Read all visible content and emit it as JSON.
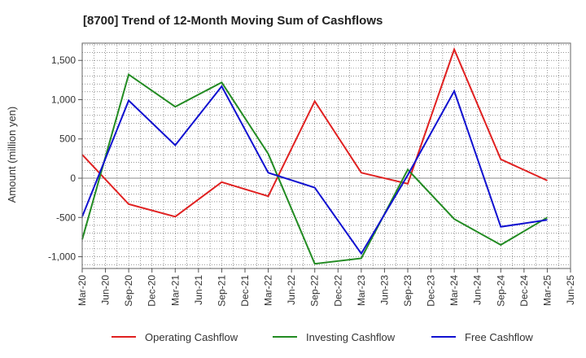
{
  "chart_data": {
    "type": "line",
    "title": "[8700]  Trend of 12-Month Moving Sum of Cashflows",
    "xlabel": "",
    "ylabel": "Amount (million yen)",
    "ylim": [
      -1150,
      1720
    ],
    "yticks": [
      -1000,
      -500,
      0,
      500,
      1000,
      1500
    ],
    "ytick_labels": [
      "-1,000",
      "-500",
      "0",
      "500",
      "1,000",
      "1,500"
    ],
    "x_tick_labels": [
      "Mar-20",
      "Jun-20",
      "Sep-20",
      "Dec-20",
      "Mar-21",
      "Jun-21",
      "Sep-21",
      "Dec-21",
      "Mar-22",
      "Jun-22",
      "Sep-22",
      "Dec-22",
      "Mar-23",
      "Jun-23",
      "Sep-23",
      "Dec-23",
      "Mar-24",
      "Jun-24",
      "Sep-24",
      "Dec-24",
      "Mar-25",
      "Jun-25"
    ],
    "grid": true,
    "legend_position": "bottom",
    "series": [
      {
        "name": "Operating Cashflow",
        "color": "#e02020",
        "x": [
          "Mar-20",
          "Sep-20",
          "Mar-21",
          "Sep-21",
          "Mar-22",
          "Sep-22",
          "Mar-23",
          "Sep-23",
          "Mar-24",
          "Sep-24",
          "Mar-25"
        ],
        "values": [
          300,
          -330,
          -490,
          -50,
          -230,
          980,
          70,
          -70,
          1640,
          240,
          -30
        ]
      },
      {
        "name": "Investing Cashflow",
        "color": "#228b22",
        "x": [
          "Mar-20",
          "Sep-20",
          "Mar-21",
          "Sep-21",
          "Mar-22",
          "Sep-22",
          "Mar-23",
          "Sep-23",
          "Mar-24",
          "Sep-24",
          "Mar-25"
        ],
        "values": [
          -780,
          1320,
          910,
          1220,
          310,
          -1090,
          -1020,
          110,
          -520,
          -850,
          -500
        ]
      },
      {
        "name": "Free Cashflow",
        "color": "#1010d0",
        "x": [
          "Mar-20",
          "Sep-20",
          "Mar-21",
          "Sep-21",
          "Mar-22",
          "Sep-22",
          "Mar-23",
          "Sep-23",
          "Mar-24",
          "Sep-24",
          "Mar-25"
        ],
        "values": [
          -490,
          990,
          420,
          1170,
          70,
          -120,
          -960,
          40,
          1110,
          -620,
          -530
        ]
      }
    ]
  }
}
